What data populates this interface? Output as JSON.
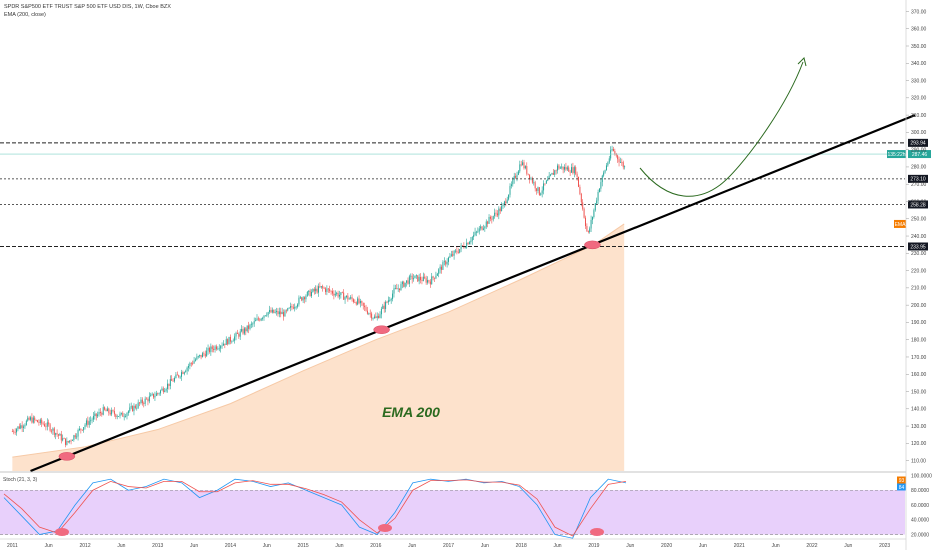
{
  "header": {
    "title_line": "SPDR S&P500 ETF TRUST S&P 500 ETF USD DIS, 1W, Cboe BZX",
    "indicator_line": "EMA (200, close)"
  },
  "annotation": {
    "ema_label": "EMA 200"
  },
  "chart_data": [
    {
      "type": "line",
      "title": "SPDR S&P500 ETF TRUST S&P 500 ETF USD DIS, 1W, Cboe BZX",
      "series": [
        {
          "name": "SPY",
          "x": [
            "2011-01",
            "2011-04",
            "2011-07",
            "2011-10",
            "2012-01",
            "2012-04",
            "2012-07",
            "2012-10",
            "2013-01",
            "2013-04",
            "2013-07",
            "2013-10",
            "2014-01",
            "2014-04",
            "2014-07",
            "2014-10",
            "2015-01",
            "2015-04",
            "2015-07",
            "2015-10",
            "2016-01",
            "2016-04",
            "2016-07",
            "2016-10",
            "2017-01",
            "2017-04",
            "2017-07",
            "2017-10",
            "2018-01",
            "2018-04",
            "2018-07",
            "2018-10",
            "2018-12",
            "2019-02",
            "2019-04",
            "2019-06"
          ],
          "values": [
            127,
            134,
            130,
            120,
            131,
            139,
            136,
            143,
            149,
            158,
            168,
            175,
            180,
            187,
            196,
            195,
            205,
            210,
            206,
            202,
            192,
            208,
            216,
            214,
            227,
            236,
            247,
            257,
            283,
            265,
            280,
            278,
            240,
            270,
            290,
            280
          ]
        },
        {
          "name": "EMA (200, close)",
          "x": [
            "2011-01",
            "2012-01",
            "2013-01",
            "2014-01",
            "2015-01",
            "2016-01",
            "2017-01",
            "2018-01",
            "2019-01",
            "2019-06"
          ],
          "values": [
            112,
            118,
            128,
            143,
            162,
            180,
            196,
            215,
            235,
            247
          ]
        }
      ],
      "price_levels": [
        {
          "label": "293.94",
          "value": 293.94
        },
        {
          "label": "287.46",
          "value": 287.46
        },
        {
          "label": "273.10",
          "value": 273.1
        },
        {
          "label": "258.28",
          "value": 258.28
        },
        {
          "label": "233.95",
          "value": 233.95
        }
      ],
      "last_price_countdown": "135:22h",
      "ema_price_tag": "EMA",
      "y_ticks": [
        110,
        120,
        130,
        140,
        150,
        160,
        170,
        180,
        190,
        200,
        210,
        220,
        230,
        240,
        250,
        260,
        270,
        280,
        290,
        300,
        310,
        320,
        330,
        340,
        350,
        360,
        370
      ],
      "y_tick_labels": [
        "110.00",
        "120.00",
        "130.00",
        "140.00",
        "150.00",
        "160.00",
        "170.00",
        "180.00",
        "190.00",
        "200.00",
        "210.00",
        "220.00",
        "230.00",
        "240.00",
        "250.00",
        "260.00",
        "270.00",
        "280.00",
        "290.00",
        "300.00",
        "310.00",
        "320.00",
        "330.00",
        "340.00",
        "350.00",
        "360.00",
        "370.00"
      ],
      "ylim": [
        104,
        372
      ],
      "x_tick_labels": [
        "2011",
        "Jun",
        "2012",
        "Jun",
        "2013",
        "Jun",
        "2014",
        "Jun",
        "2015",
        "Jun",
        "2016",
        "Jun",
        "2017",
        "Jun",
        "2018",
        "Jun",
        "2019",
        "Jun",
        "2020",
        "Jun",
        "2021",
        "Jun",
        "2022",
        "Jun",
        "2023"
      ],
      "trendline": {
        "from": [
          "2011-04",
          104
        ],
        "to": [
          "2023-06",
          310
        ]
      },
      "grid": false
    },
    {
      "type": "line",
      "title": "Stoch (21, 3, 3)",
      "series": [
        {
          "name": "%K",
          "values": [
            70,
            45,
            20,
            25,
            60,
            90,
            95,
            80,
            85,
            95,
            90,
            70,
            80,
            95,
            92,
            85,
            90,
            80,
            70,
            60,
            30,
            20,
            50,
            90,
            95,
            92,
            95,
            90,
            92,
            85,
            60,
            20,
            15,
            70,
            95,
            90
          ]
        },
        {
          "name": "%D",
          "values": [
            75,
            55,
            30,
            22,
            50,
            80,
            92,
            85,
            83,
            92,
            92,
            78,
            78,
            90,
            93,
            88,
            88,
            82,
            74,
            64,
            40,
            22,
            42,
            80,
            93,
            93,
            94,
            91,
            91,
            87,
            68,
            30,
            18,
            55,
            88,
            92
          ]
        }
      ],
      "ylim": [
        20,
        100
      ],
      "bands": [
        80,
        20
      ],
      "y_tick_labels": [
        "100.0000",
        "80.0000",
        "60.0000",
        "40.0000",
        "20.0000"
      ],
      "value_tags": [
        "93",
        "84"
      ]
    }
  ]
}
